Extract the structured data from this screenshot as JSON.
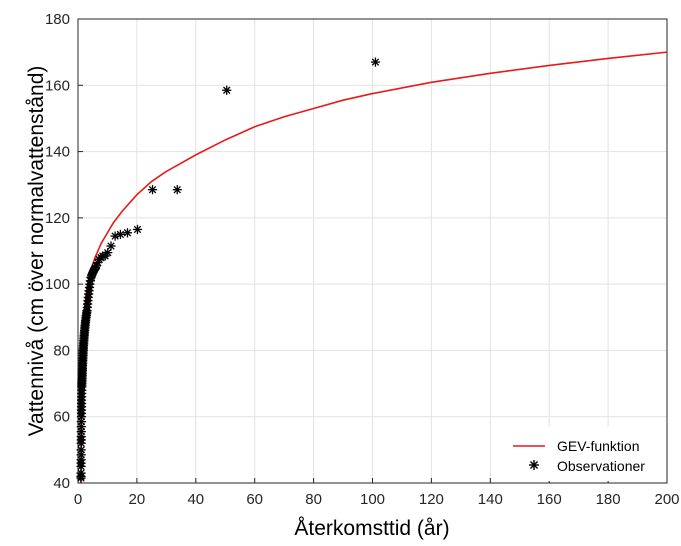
{
  "chart_data": {
    "type": "scatter",
    "xlabel": "Återkomsttid (år)",
    "ylabel": "Vattennivå (cm över normalvattenstånd)",
    "xlim": [
      0,
      200
    ],
    "ylim": [
      40,
      180
    ],
    "xticks": [
      "0",
      "20",
      "40",
      "60",
      "80",
      "100",
      "120",
      "140",
      "160",
      "180",
      "200"
    ],
    "yticks": [
      "40",
      "60",
      "80",
      "100",
      "120",
      "140",
      "160",
      "180"
    ],
    "grid": true,
    "legend_position": "bottom-right",
    "series": [
      {
        "name": "GEV-funktion",
        "kind": "line",
        "color": "#e8191b",
        "x": [
          1.0,
          1.05,
          1.1,
          1.2,
          1.35,
          1.5,
          1.75,
          2,
          2.5,
          3,
          4,
          5,
          6,
          7,
          8,
          10,
          12,
          15,
          20,
          25,
          30,
          35,
          40,
          50,
          60,
          70,
          80,
          90,
          100,
          120,
          140,
          160,
          180,
          200
        ],
        "y": [
          40,
          60,
          68,
          75.5,
          81,
          85,
          88.5,
          91,
          95,
          98,
          102.5,
          106,
          108.5,
          110.5,
          112.5,
          115.5,
          118.5,
          122,
          127,
          131,
          134,
          136.5,
          139,
          143.5,
          147.5,
          150.5,
          153,
          155.5,
          157.5,
          160.9,
          163.6,
          166,
          168.1,
          170
        ]
      },
      {
        "name": "Observationer",
        "kind": "scatter",
        "marker": "asterisk",
        "color": "#000000",
        "x": [
          101,
          50.5,
          33.7,
          25.3,
          20.2,
          16.8,
          14.4,
          12.6,
          11.2,
          10.1,
          9.2,
          8.4,
          7.8,
          7.2,
          6.7,
          6.3,
          5.9,
          5.6,
          5.3,
          5.05,
          4.8,
          4.6,
          4.4,
          4.2,
          4.0,
          3.9,
          3.74,
          3.61,
          3.48,
          3.37,
          3.26,
          3.16,
          3.06,
          2.97,
          2.89,
          2.81,
          2.73,
          2.66,
          2.59,
          2.53,
          2.46,
          2.4,
          2.35,
          2.3,
          2.24,
          2.2,
          2.15,
          2.1,
          2.06,
          2.02,
          1.98,
          1.94,
          1.91,
          1.87,
          1.84,
          1.8,
          1.77,
          1.74,
          1.71,
          1.68,
          1.66,
          1.63,
          1.6,
          1.58,
          1.55,
          1.53,
          1.51,
          1.49,
          1.47,
          1.45,
          1.43,
          1.41,
          1.39,
          1.37,
          1.35,
          1.33,
          1.31,
          1.29,
          1.28,
          1.27,
          1.25,
          1.24,
          1.22,
          1.21,
          1.2,
          1.18,
          1.17,
          1.16,
          1.15,
          1.13,
          1.12,
          1.11,
          1.1,
          1.09,
          1.08,
          1.07,
          1.06,
          1.05,
          1.04,
          1.03,
          1.02,
          1.015
        ],
        "y": [
          167,
          158.5,
          128.5,
          128.5,
          116.5,
          115.5,
          115,
          114.5,
          111.5,
          109.5,
          108.5,
          108.5,
          108,
          107.5,
          106.5,
          105.5,
          105,
          104.5,
          104,
          103.5,
          103,
          102.5,
          102,
          101,
          100,
          99,
          98,
          97,
          96,
          95,
          94,
          93,
          92,
          91.5,
          91,
          90.5,
          90,
          89.5,
          89,
          88.5,
          88,
          87.5,
          87,
          86.5,
          86,
          85.5,
          85,
          84.5,
          84,
          83.5,
          83,
          82.5,
          82,
          81.5,
          81,
          80.5,
          80,
          79.5,
          79,
          78.5,
          78,
          77.5,
          77,
          76.5,
          76,
          75.5,
          75,
          74.5,
          74,
          73.5,
          73,
          72.5,
          72,
          71.5,
          71,
          70.5,
          70,
          69.5,
          69,
          68,
          67,
          66,
          65,
          64,
          63,
          62,
          61,
          60,
          58.5,
          57,
          55.5,
          54,
          53,
          52,
          50,
          48.5,
          47,
          46,
          45,
          43,
          42,
          41.5
        ]
      }
    ]
  }
}
